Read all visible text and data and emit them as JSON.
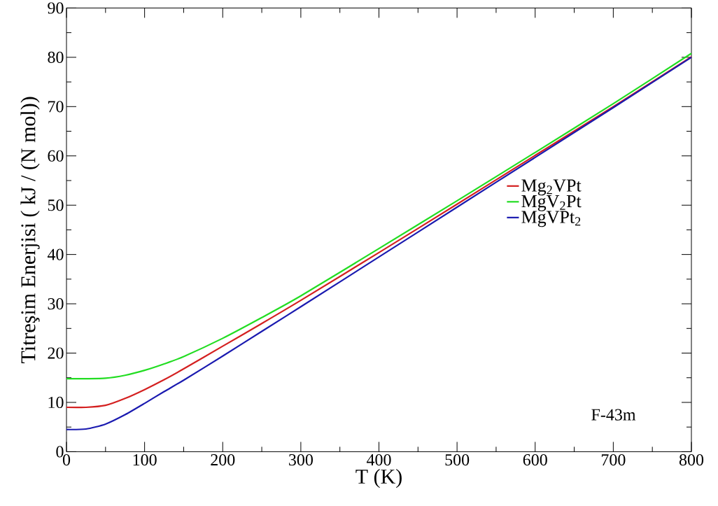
{
  "chart_data": {
    "type": "line",
    "xlabel": "T (K)",
    "ylabel": "Titreşim Enerjisi ( kJ / (N mol))",
    "x": [
      0,
      25,
      50,
      75,
      100,
      125,
      150,
      200,
      250,
      300,
      400,
      500,
      600,
      700,
      800
    ],
    "series": [
      {
        "name": "Mg$_{2}$VPt",
        "color": "#d42020",
        "values": [
          9.0,
          9.0,
          9.4,
          10.8,
          12.6,
          14.6,
          16.8,
          21.4,
          26.0,
          30.7,
          40.4,
          50.2,
          60.1,
          70.0,
          80.1
        ]
      },
      {
        "name": "MgV$_{2}$Pt",
        "color": "#22dd22",
        "values": [
          14.8,
          14.8,
          14.9,
          15.5,
          16.5,
          17.8,
          19.3,
          23.0,
          27.2,
          31.6,
          41.2,
          50.9,
          60.7,
          70.6,
          80.8
        ]
      },
      {
        "name": "MgVPt$_{2}$",
        "color": "#1a1ab0",
        "values": [
          4.5,
          4.6,
          5.6,
          7.5,
          9.8,
          12.2,
          14.5,
          19.4,
          24.4,
          29.4,
          39.5,
          49.6,
          59.7,
          69.8,
          80.0
        ]
      }
    ],
    "xlim": [
      0,
      800
    ],
    "xticks": [
      0,
      100,
      200,
      300,
      400,
      500,
      600,
      700,
      800
    ],
    "ylim": [
      0,
      90
    ],
    "yticks": [
      0,
      10,
      20,
      30,
      40,
      50,
      60,
      70,
      80,
      90
    ],
    "annotations": [
      "F-43m"
    ],
    "legend": "right",
    "grid": false,
    "marker": "none",
    "line_style": "solid"
  }
}
